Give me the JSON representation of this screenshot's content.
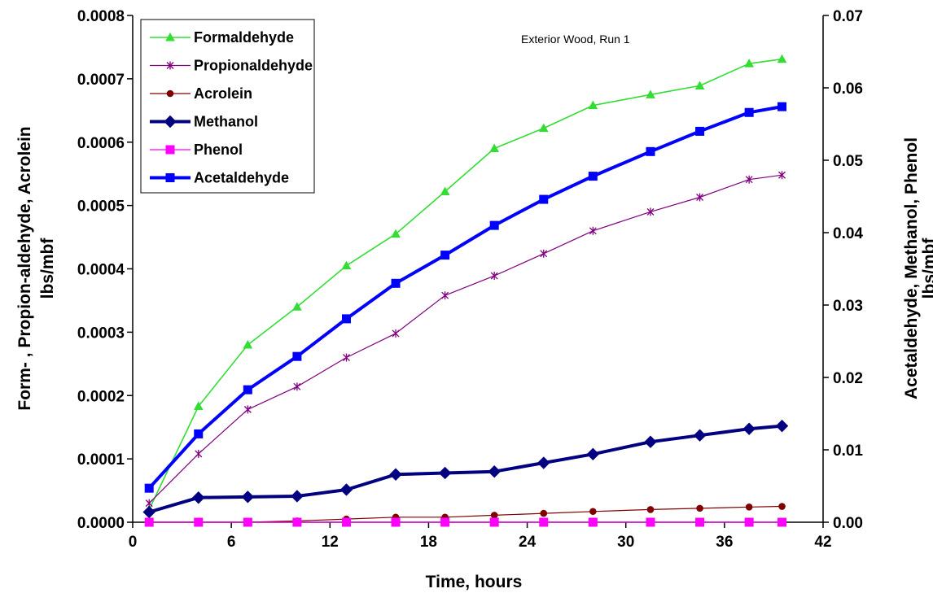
{
  "chart_data": {
    "type": "line",
    "annotation": "Exterior Wood, Run 1",
    "xlabel": "Time, hours",
    "ylabel_left_line1": "Form- , Propion-aldehyde, Acrolein",
    "ylabel_left_line2": "lbs/mbf",
    "ylabel_right_line1": "Acetaldehyde, Methanol, Phenol",
    "ylabel_right_line2": "lbs/mbf",
    "xlim": [
      0,
      42
    ],
    "xticks": [
      0,
      6,
      12,
      18,
      24,
      30,
      36,
      42
    ],
    "ylim_left": [
      0,
      0.0008
    ],
    "yticks_left": [
      "0.0000",
      "0.0001",
      "0.0002",
      "0.0003",
      "0.0004",
      "0.0005",
      "0.0006",
      "0.0007",
      "0.0008"
    ],
    "ylim_right": [
      0,
      0.07
    ],
    "yticks_right": [
      "0.00",
      "0.01",
      "0.02",
      "0.03",
      "0.04",
      "0.05",
      "0.06",
      "0.07"
    ],
    "grid": false,
    "legend_position": "top-left",
    "x": [
      1,
      4,
      7,
      10,
      13,
      16,
      19,
      22,
      25,
      28,
      31.5,
      34.5,
      37.5,
      39.5
    ],
    "series": [
      {
        "name": "Formaldehyde",
        "axis": "left",
        "color": "#33dd33",
        "marker": "triangle",
        "width": 1.6,
        "values": [
          2e-05,
          0.000183,
          0.00028,
          0.00034,
          0.000405,
          0.000455,
          0.000522,
          0.00059,
          0.000622,
          0.000658,
          0.000675,
          0.000689,
          0.000724,
          0.000731
        ]
      },
      {
        "name": "Propionaldehyde",
        "axis": "left",
        "color": "#800080",
        "marker": "star",
        "width": 1.2,
        "values": [
          3e-05,
          0.000108,
          0.000178,
          0.000214,
          0.00026,
          0.000298,
          0.000358,
          0.000389,
          0.000424,
          0.00046,
          0.00049,
          0.000513,
          0.000541,
          0.000548
        ]
      },
      {
        "name": "Acrolein",
        "axis": "left",
        "color": "#800000",
        "marker": "circle",
        "width": 1.2,
        "values": [
          0.0,
          0.0,
          0.0,
          2e-06,
          5e-06,
          8e-06,
          8e-06,
          1.1e-05,
          1.4e-05,
          1.7e-05,
          2e-05,
          2.2e-05,
          2.4e-05,
          2.5e-05
        ]
      },
      {
        "name": "Methanol",
        "axis": "right",
        "color": "#000080",
        "marker": "diamond",
        "width": 4,
        "values": [
          0.0014,
          0.0034,
          0.0035,
          0.0036,
          0.0045,
          0.0066,
          0.0068,
          0.007,
          0.0082,
          0.0094,
          0.0111,
          0.012,
          0.0129,
          0.0133
        ]
      },
      {
        "name": "Phenol",
        "axis": "right",
        "color": "#ff00ff",
        "marker": "square",
        "width": 1.2,
        "values": [
          0.0,
          0.0,
          0.0,
          0.0,
          0.0,
          0.0,
          0.0,
          0.0,
          0.0,
          0.0,
          0.0,
          0.0,
          0.0,
          0.0
        ]
      },
      {
        "name": "Acetaldehyde",
        "axis": "right",
        "color": "#0000ff",
        "marker": "square",
        "width": 4,
        "values": [
          0.0047,
          0.0122,
          0.0183,
          0.0229,
          0.0281,
          0.033,
          0.0369,
          0.041,
          0.0446,
          0.0478,
          0.0512,
          0.054,
          0.0566,
          0.0574
        ]
      }
    ]
  }
}
